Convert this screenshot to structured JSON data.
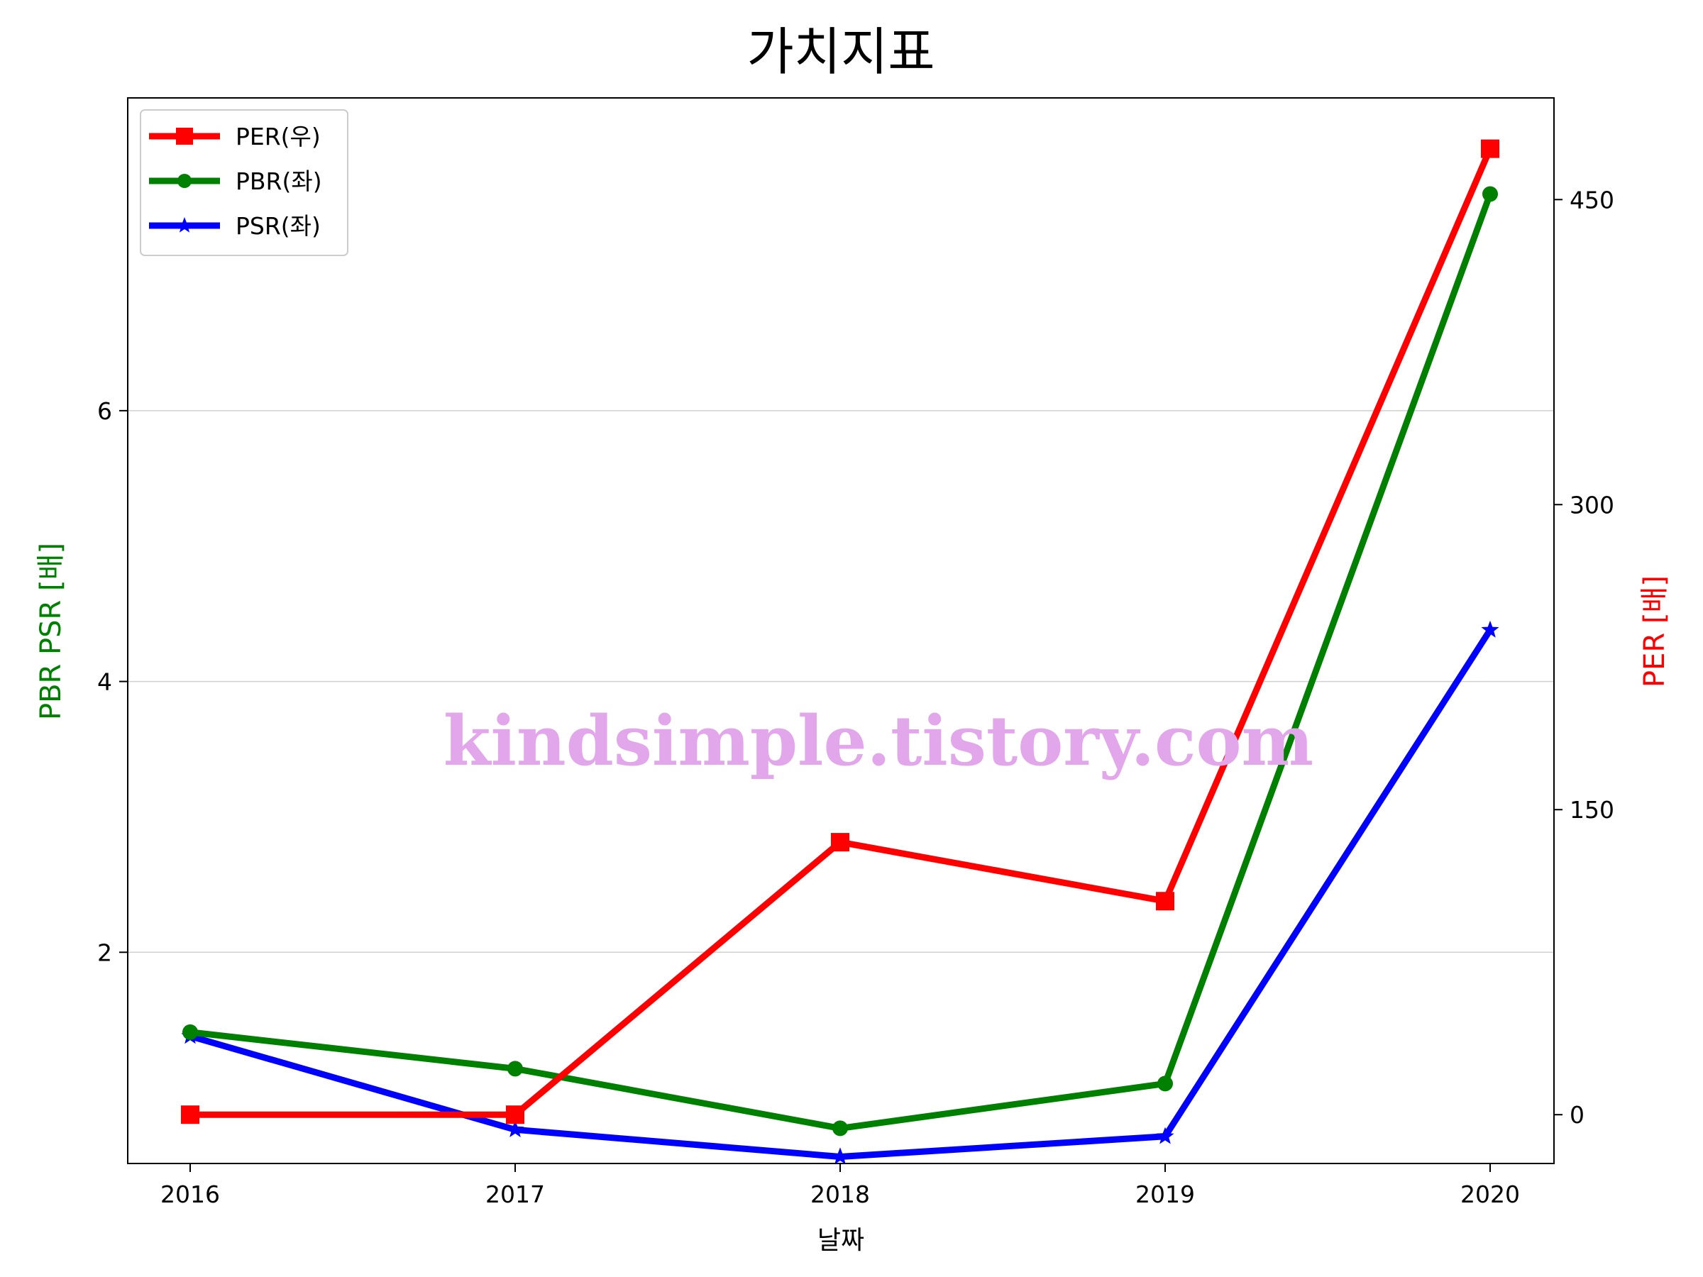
{
  "chart_data": {
    "type": "line",
    "title": "가치지표",
    "xlabel": "날짜",
    "ylabel_left": "PBR PSR [배]",
    "ylabel_right": "PER [배]",
    "categories": [
      "2016",
      "2017",
      "2018",
      "2019",
      "2020"
    ],
    "yticks_left": [
      "2",
      "4",
      "6"
    ],
    "yticks_right": [
      "0",
      "150",
      "300",
      "450"
    ],
    "ylim_left": [
      0.44,
      8.31
    ],
    "ylim_right": [
      -24,
      500
    ],
    "grid": "horizontal-left",
    "legend_position": "top-left",
    "series": [
      {
        "name": "PER(우)",
        "axis": "right",
        "color": "#ff0000",
        "marker": "square",
        "values": [
          0,
          0,
          134,
          105,
          475
        ]
      },
      {
        "name": "PBR(좌)",
        "axis": "left",
        "color": "#008000",
        "marker": "circle",
        "values": [
          1.41,
          1.14,
          0.7,
          1.03,
          7.6
        ]
      },
      {
        "name": "PSR(좌)",
        "axis": "left",
        "color": "#0000ff",
        "marker": "star",
        "values": [
          1.38,
          0.69,
          0.49,
          0.64,
          4.38
        ]
      }
    ],
    "left_label_color": "#008000",
    "right_label_color": "#ff0000"
  },
  "watermark": {
    "text": "kindsimple.tistory.com",
    "color": "#e2a6ea"
  }
}
